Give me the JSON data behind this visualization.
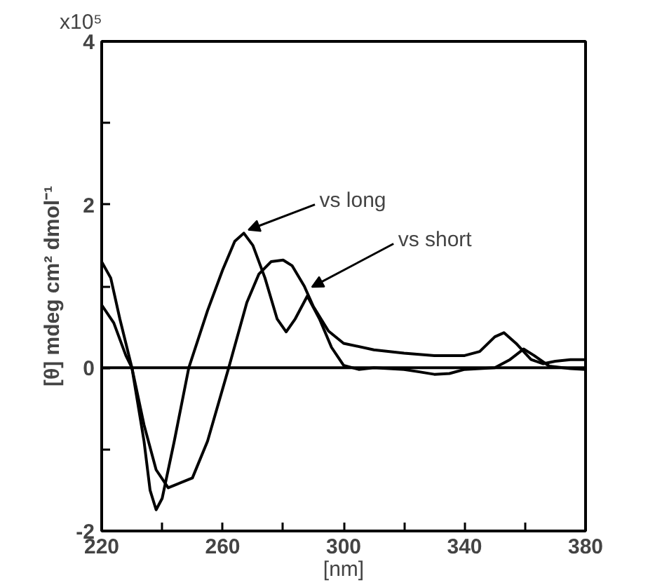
{
  "chart_data": {
    "type": "line",
    "xlabel": "[nm]",
    "ylabel": "[θ] mdeg cm² dmol⁻¹",
    "xlim": [
      220,
      380
    ],
    "ylim": [
      -2,
      4
    ],
    "xticks": [
      220,
      {
        "value": 240,
        "label": null
      },
      260,
      {
        "value": 280,
        "label": null
      },
      300,
      {
        "value": 320,
        "label": null
      },
      340,
      {
        "value": 360,
        "label": null
      },
      380
    ],
    "yticks": [
      -2,
      {
        "value": -1,
        "label": null
      },
      0,
      {
        "value": 1,
        "label": null
      },
      2,
      {
        "value": 3,
        "label": null
      },
      4
    ],
    "grid": false,
    "marker": "none",
    "line_style": "solid",
    "ref_lines": [
      {
        "axis": "y",
        "value": 0,
        "color": "#000000"
      }
    ],
    "annotations": [
      "x10⁵",
      {
        "text": "vs long",
        "x": 267,
        "y": 1.65
      },
      {
        "text": "vs short",
        "x": 288,
        "y": 0.95
      }
    ],
    "series": [
      {
        "color": "#000000",
        "x": [
          220,
          224,
          228,
          230,
          234,
          236,
          238,
          240,
          244,
          248.8,
          255,
          260,
          264,
          267,
          270,
          274,
          278,
          281,
          284,
          288,
          292,
          296,
          300,
          305,
          310,
          320,
          325,
          330,
          335,
          340,
          350,
          355,
          359.5,
          363,
          368,
          375,
          380
        ],
        "values": [
          0.77,
          0.55,
          0.15,
          0,
          -0.9,
          -1.5,
          -1.74,
          -1.6,
          -0.9,
          0,
          0.7,
          1.2,
          1.55,
          1.65,
          1.5,
          1.1,
          0.6,
          0.44,
          0.6,
          0.88,
          0.6,
          0.25,
          0.03,
          -0.02,
          0,
          -0.02,
          -0.05,
          -0.08,
          -0.07,
          -0.02,
          0,
          0.1,
          0.23,
          0.15,
          0.02,
          -0.01,
          -0.02
        ]
      },
      {
        "color": "#000000",
        "x": [
          220,
          223,
          226,
          230,
          234,
          238,
          242,
          250,
          255,
          262,
          268,
          272,
          276,
          280,
          283,
          287,
          290,
          295,
          300,
          310,
          320,
          330,
          340,
          345,
          350,
          353,
          357,
          362,
          366,
          370,
          375,
          380
        ],
        "values": [
          1.3,
          1.1,
          0.6,
          0,
          -0.7,
          -1.25,
          -1.47,
          -1.35,
          -0.9,
          0,
          0.8,
          1.15,
          1.3,
          1.32,
          1.25,
          1.0,
          0.75,
          0.45,
          0.3,
          0.22,
          0.18,
          0.15,
          0.15,
          0.2,
          0.38,
          0.43,
          0.3,
          0.1,
          0.05,
          0.08,
          0.1,
          0.1
        ]
      }
    ]
  }
}
